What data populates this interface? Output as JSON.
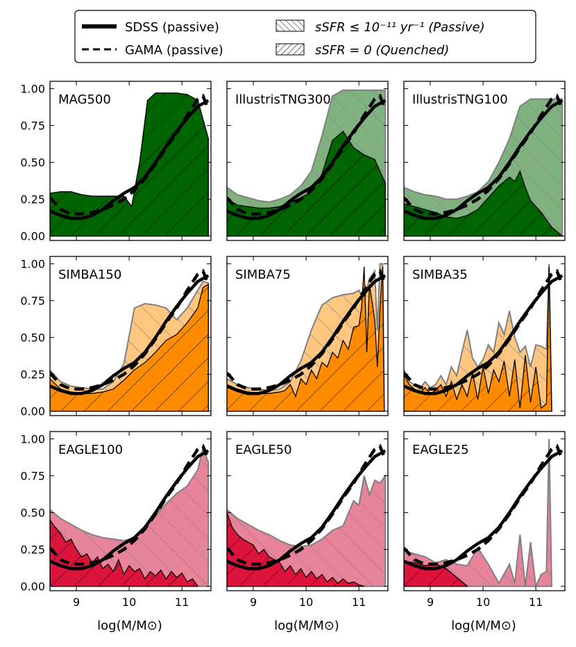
{
  "legend": {
    "entries": [
      {
        "label": "SDSS (passive)",
        "kind": "line-solid"
      },
      {
        "label": "GAMA (passive)",
        "kind": "line-dashed"
      },
      {
        "label": "sSFR ≤ 10⁻¹¹ yr⁻¹ (Passive)",
        "kind": "hatch-backslash"
      },
      {
        "label": "sSFR = 0 (Quenched)",
        "kind": "hatch-slash"
      }
    ]
  },
  "xlabel": "log(M/M⊙)",
  "colors": {
    "MAG500": {
      "passive": "#006400",
      "quenched": "#006400"
    },
    "IllustrisTNG": {
      "passive": "#7fb27f",
      "quenched": "#006400"
    },
    "SIMBA": {
      "passive": "#ffc680",
      "quenched": "#ff8c00"
    },
    "EAGLE": {
      "passive": "#e8849a",
      "quenched": "#dc143c"
    }
  },
  "chart_data": [
    {
      "type": "area",
      "title": "MAG500",
      "family": "MAG500",
      "xlim": [
        8.5,
        11.55
      ],
      "ylim": [
        -0.03,
        1.05
      ],
      "xticks": [
        "9",
        "10",
        "11"
      ],
      "yticks": [
        "0.00",
        "0.25",
        "0.50",
        "0.75",
        "1.00"
      ],
      "passive": {
        "x": [
          8.5,
          8.7,
          8.9,
          9.1,
          9.3,
          9.5,
          9.7,
          9.9,
          10.05,
          10.2,
          10.35,
          10.5,
          10.7,
          10.9,
          11.1,
          11.3,
          11.5
        ],
        "y": [
          0.29,
          0.3,
          0.3,
          0.28,
          0.27,
          0.27,
          0.27,
          0.27,
          0.2,
          0.5,
          0.92,
          0.97,
          0.97,
          0.97,
          0.96,
          0.92,
          0.66
        ]
      },
      "quenched": {
        "x": [
          8.5,
          8.7,
          8.9,
          9.1,
          9.3,
          9.5,
          9.7,
          9.9,
          10.05,
          10.2,
          10.35,
          10.5,
          10.7,
          10.9,
          11.1,
          11.3,
          11.5
        ],
        "y": [
          0.29,
          0.3,
          0.3,
          0.28,
          0.27,
          0.27,
          0.27,
          0.27,
          0.2,
          0.5,
          0.92,
          0.97,
          0.97,
          0.97,
          0.96,
          0.92,
          0.66
        ]
      }
    },
    {
      "type": "area",
      "title": "IllustrisTNG300",
      "family": "IllustrisTNG",
      "xlim": [
        8.5,
        11.55
      ],
      "ylim": [
        -0.03,
        1.05
      ],
      "xticks": [
        "9",
        "10",
        "11"
      ],
      "yticks": [
        "0.00",
        "0.25",
        "0.50",
        "0.75",
        "1.00"
      ],
      "passive": {
        "x": [
          8.5,
          8.7,
          8.9,
          9.1,
          9.3,
          9.5,
          9.7,
          9.9,
          10.1,
          10.3,
          10.5,
          10.7,
          10.9,
          11.1,
          11.3,
          11.5
        ],
        "y": [
          0.33,
          0.28,
          0.26,
          0.24,
          0.23,
          0.25,
          0.28,
          0.34,
          0.44,
          0.68,
          0.95,
          0.99,
          0.99,
          0.99,
          0.99,
          0.99
        ]
      },
      "quenched": {
        "x": [
          8.5,
          8.7,
          8.9,
          9.1,
          9.3,
          9.5,
          9.7,
          9.9,
          10.1,
          10.3,
          10.5,
          10.7,
          10.9,
          11.1,
          11.3,
          11.5
        ],
        "y": [
          0.25,
          0.21,
          0.2,
          0.19,
          0.19,
          0.2,
          0.23,
          0.26,
          0.3,
          0.42,
          0.65,
          0.71,
          0.6,
          0.55,
          0.52,
          0.36
        ]
      }
    },
    {
      "type": "area",
      "title": "IllustrisTNG100",
      "family": "IllustrisTNG",
      "xlim": [
        8.5,
        11.55
      ],
      "ylim": [
        -0.03,
        1.05
      ],
      "xticks": [
        "9",
        "10",
        "11"
      ],
      "yticks": [
        "0.00",
        "0.25",
        "0.50",
        "0.75",
        "1.00"
      ],
      "passive": {
        "x": [
          8.5,
          8.7,
          8.9,
          9.1,
          9.3,
          9.5,
          9.7,
          9.9,
          10.1,
          10.3,
          10.5,
          10.7,
          10.9,
          11.1,
          11.3,
          11.5
        ],
        "y": [
          0.33,
          0.3,
          0.28,
          0.27,
          0.25,
          0.25,
          0.27,
          0.3,
          0.37,
          0.5,
          0.66,
          0.88,
          0.93,
          0.93,
          0.93,
          0.93
        ]
      },
      "quenched": {
        "x": [
          8.5,
          8.7,
          8.9,
          9.1,
          9.3,
          9.5,
          9.7,
          9.9,
          10.1,
          10.3,
          10.5,
          10.6,
          10.7,
          10.8,
          10.9,
          11.1,
          11.3,
          11.5
        ],
        "y": [
          0.22,
          0.2,
          0.18,
          0.16,
          0.13,
          0.12,
          0.14,
          0.18,
          0.26,
          0.34,
          0.4,
          0.37,
          0.44,
          0.33,
          0.24,
          0.16,
          0.06,
          0.0
        ]
      }
    },
    {
      "type": "area",
      "title": "SIMBA150",
      "family": "SIMBA",
      "xlim": [
        8.5,
        11.55
      ],
      "ylim": [
        -0.03,
        1.05
      ],
      "xticks": [
        "9",
        "10",
        "11"
      ],
      "yticks": [
        "0.00",
        "0.25",
        "0.50",
        "0.75",
        "1.00"
      ],
      "passive": {
        "x": [
          8.5,
          8.7,
          8.9,
          9.1,
          9.3,
          9.5,
          9.7,
          9.9,
          10.1,
          10.3,
          10.5,
          10.7,
          10.9,
          11.1,
          11.3,
          11.4,
          11.5
        ],
        "y": [
          0.28,
          0.2,
          0.17,
          0.16,
          0.15,
          0.15,
          0.2,
          0.32,
          0.7,
          0.73,
          0.72,
          0.7,
          0.62,
          0.7,
          0.82,
          0.88,
          0.87
        ]
      },
      "quenched": {
        "x": [
          8.5,
          8.7,
          8.9,
          9.1,
          9.3,
          9.5,
          9.7,
          9.9,
          10.1,
          10.3,
          10.5,
          10.7,
          10.9,
          11.1,
          11.3,
          11.4,
          11.5
        ],
        "y": [
          0.22,
          0.15,
          0.13,
          0.12,
          0.12,
          0.13,
          0.15,
          0.21,
          0.28,
          0.33,
          0.4,
          0.48,
          0.52,
          0.6,
          0.7,
          0.84,
          0.86
        ]
      }
    },
    {
      "type": "area",
      "title": "SIMBA75",
      "family": "SIMBA",
      "xlim": [
        8.5,
        11.55
      ],
      "ylim": [
        -0.03,
        1.05
      ],
      "xticks": [
        "9",
        "10",
        "11"
      ],
      "yticks": [
        "0.00",
        "0.25",
        "0.50",
        "0.75",
        "1.00"
      ],
      "passive": {
        "x": [
          8.5,
          8.7,
          8.9,
          9.1,
          9.3,
          9.5,
          9.7,
          9.9,
          10.1,
          10.3,
          10.5,
          10.7,
          10.9,
          11.0,
          11.1,
          11.2,
          11.3,
          11.35,
          11.4,
          11.45,
          11.48
        ],
        "y": [
          0.22,
          0.18,
          0.16,
          0.15,
          0.14,
          0.15,
          0.2,
          0.34,
          0.55,
          0.72,
          0.77,
          0.79,
          0.8,
          0.82,
          0.75,
          0.9,
          0.95,
          0.55,
          1.0,
          1.0,
          0.0
        ]
      },
      "quenched": {
        "x": [
          8.5,
          8.7,
          8.9,
          9.1,
          9.3,
          9.5,
          9.6,
          9.7,
          9.8,
          9.9,
          10.0,
          10.1,
          10.2,
          10.3,
          10.4,
          10.5,
          10.6,
          10.7,
          10.8,
          10.9,
          11.0,
          11.05,
          11.1,
          11.15,
          11.2,
          11.3,
          11.35,
          11.4,
          11.45,
          11.48
        ],
        "y": [
          0.18,
          0.15,
          0.13,
          0.12,
          0.12,
          0.13,
          0.14,
          0.18,
          0.1,
          0.22,
          0.18,
          0.28,
          0.22,
          0.33,
          0.3,
          0.4,
          0.36,
          0.48,
          0.42,
          0.57,
          0.58,
          0.7,
          0.98,
          0.4,
          0.86,
          0.62,
          0.3,
          0.7,
          0.98,
          0.0
        ]
      }
    },
    {
      "type": "area",
      "title": "SIMBA35",
      "family": "SIMBA",
      "xlim": [
        8.5,
        11.55
      ],
      "ylim": [
        -0.03,
        1.05
      ],
      "xticks": [
        "9",
        "10",
        "11"
      ],
      "yticks": [
        "0.00",
        "0.25",
        "0.50",
        "0.75",
        "1.00"
      ],
      "passive": {
        "x": [
          8.5,
          8.6,
          8.7,
          8.8,
          8.9,
          9.0,
          9.1,
          9.2,
          9.3,
          9.4,
          9.5,
          9.6,
          9.7,
          9.8,
          9.9,
          10.0,
          10.1,
          10.2,
          10.3,
          10.4,
          10.5,
          10.6,
          10.7,
          10.8,
          10.9,
          11.0,
          11.1,
          11.2,
          11.25,
          11.3
        ],
        "y": [
          0.28,
          0.2,
          0.18,
          0.15,
          0.2,
          0.16,
          0.18,
          0.24,
          0.18,
          0.3,
          0.24,
          0.4,
          0.55,
          0.36,
          0.3,
          0.35,
          0.45,
          0.4,
          0.6,
          0.52,
          0.68,
          0.5,
          0.4,
          0.44,
          0.3,
          0.45,
          0.44,
          0.42,
          1.0,
          0.0
        ]
      },
      "quenched": {
        "x": [
          8.5,
          8.6,
          8.7,
          8.8,
          8.9,
          9.0,
          9.1,
          9.2,
          9.3,
          9.4,
          9.5,
          9.6,
          9.7,
          9.8,
          9.9,
          10.0,
          10.1,
          10.2,
          10.3,
          10.4,
          10.5,
          10.6,
          10.7,
          10.8,
          10.9,
          11.0,
          11.1,
          11.2,
          11.25,
          11.3
        ],
        "y": [
          0.25,
          0.18,
          0.15,
          0.12,
          0.16,
          0.12,
          0.14,
          0.18,
          0.1,
          0.2,
          0.08,
          0.18,
          0.1,
          0.26,
          0.08,
          0.3,
          0.12,
          0.28,
          0.2,
          0.34,
          0.1,
          0.35,
          0.02,
          0.38,
          0.06,
          0.3,
          0.02,
          0.05,
          0.98,
          0.0
        ]
      }
    },
    {
      "type": "area",
      "title": "EAGLE100",
      "family": "EAGLE",
      "xlim": [
        8.5,
        11.55
      ],
      "ylim": [
        -0.03,
        1.05
      ],
      "xticks": [
        "9",
        "10",
        "11"
      ],
      "yticks": [
        "0.00",
        "0.25",
        "0.50",
        "0.75",
        "1.00"
      ],
      "passive": {
        "x": [
          8.5,
          8.7,
          8.9,
          9.1,
          9.3,
          9.5,
          9.7,
          9.9,
          10.1,
          10.3,
          10.5,
          10.7,
          10.9,
          11.1,
          11.3,
          11.4,
          11.5
        ],
        "y": [
          0.52,
          0.46,
          0.42,
          0.38,
          0.35,
          0.33,
          0.32,
          0.31,
          0.33,
          0.4,
          0.48,
          0.56,
          0.63,
          0.68,
          0.79,
          0.94,
          0.84
        ]
      },
      "quenched": {
        "x": [
          8.5,
          8.6,
          8.7,
          8.8,
          8.9,
          9.0,
          9.1,
          9.2,
          9.3,
          9.4,
          9.5,
          9.6,
          9.7,
          9.8,
          9.9,
          10.0,
          10.1,
          10.2,
          10.3,
          10.4,
          10.5,
          10.6,
          10.7,
          10.8,
          10.9,
          11.0,
          11.1,
          11.2,
          11.3
        ],
        "y": [
          0.45,
          0.4,
          0.36,
          0.3,
          0.32,
          0.25,
          0.2,
          0.22,
          0.16,
          0.2,
          0.12,
          0.15,
          0.1,
          0.18,
          0.08,
          0.14,
          0.1,
          0.12,
          0.05,
          0.1,
          0.07,
          0.11,
          0.05,
          0.1,
          0.06,
          0.09,
          0.03,
          0.05,
          0.0
        ]
      }
    },
    {
      "type": "area",
      "title": "EAGLE50",
      "family": "EAGLE",
      "xlim": [
        8.5,
        11.55
      ],
      "ylim": [
        -0.03,
        1.05
      ],
      "xticks": [
        "9",
        "10",
        "11"
      ],
      "yticks": [
        "0.00",
        "0.25",
        "0.50",
        "0.75",
        "1.00"
      ],
      "passive": {
        "x": [
          8.5,
          8.7,
          8.9,
          9.1,
          9.3,
          9.5,
          9.7,
          9.9,
          10.1,
          10.3,
          10.5,
          10.7,
          10.9,
          11.0,
          11.1,
          11.2,
          11.3,
          11.4,
          11.5
        ],
        "y": [
          0.52,
          0.46,
          0.42,
          0.38,
          0.35,
          0.31,
          0.28,
          0.27,
          0.28,
          0.32,
          0.38,
          0.41,
          0.58,
          0.55,
          0.75,
          0.62,
          0.72,
          0.7,
          0.75
        ]
      },
      "quenched": {
        "x": [
          8.5,
          8.6,
          8.7,
          8.8,
          8.9,
          9.0,
          9.1,
          9.2,
          9.3,
          9.4,
          9.5,
          9.6,
          9.7,
          9.8,
          9.9,
          10.0,
          10.1,
          10.2,
          10.3,
          10.4,
          10.5,
          10.6,
          10.7,
          10.8,
          10.9,
          11.0,
          11.1
        ],
        "y": [
          0.5,
          0.4,
          0.35,
          0.32,
          0.3,
          0.28,
          0.22,
          0.25,
          0.2,
          0.18,
          0.16,
          0.1,
          0.14,
          0.08,
          0.12,
          0.06,
          0.1,
          0.05,
          0.08,
          0.03,
          0.06,
          0.02,
          0.05,
          0.02,
          0.03,
          0.01,
          0.0
        ]
      }
    },
    {
      "type": "area",
      "title": "EAGLE25",
      "family": "EAGLE",
      "xlim": [
        8.5,
        11.55
      ],
      "ylim": [
        -0.03,
        1.05
      ],
      "xticks": [
        "9",
        "10",
        "11"
      ],
      "yticks": [
        "0.00",
        "0.25",
        "0.50",
        "0.75",
        "1.00"
      ],
      "passive": {
        "x": [
          8.5,
          8.7,
          8.9,
          9.1,
          9.3,
          9.5,
          9.7,
          9.9,
          10.1,
          10.3,
          10.5,
          10.6,
          10.7,
          10.8,
          10.9,
          11.0,
          11.1,
          11.2,
          11.25,
          11.3
        ],
        "y": [
          0.24,
          0.22,
          0.2,
          0.16,
          0.18,
          0.15,
          0.14,
          0.26,
          0.15,
          0.02,
          0.15,
          0.02,
          0.35,
          0.0,
          0.3,
          0.0,
          0.08,
          0.1,
          1.0,
          0.0
        ]
      },
      "quenched": {
        "x": [
          8.5,
          8.7,
          8.9,
          9.1,
          9.3,
          9.5,
          9.7
        ],
        "y": [
          0.17,
          0.16,
          0.14,
          0.15,
          0.12,
          0.06,
          0.0
        ]
      }
    }
  ],
  "observations": {
    "sdss": {
      "x": [
        8.5,
        8.7,
        8.9,
        9.1,
        9.3,
        9.5,
        9.7,
        9.9,
        10.1,
        10.3,
        10.5,
        10.7,
        10.9,
        11.1,
        11.3,
        11.5
      ],
      "y": [
        0.17,
        0.14,
        0.12,
        0.12,
        0.14,
        0.18,
        0.24,
        0.29,
        0.33,
        0.4,
        0.5,
        0.61,
        0.71,
        0.8,
        0.88,
        0.92
      ]
    },
    "gama": {
      "x": [
        8.5,
        8.7,
        8.9,
        9.1,
        9.3,
        9.5,
        9.7,
        9.9,
        10.1,
        10.3,
        10.5,
        10.7,
        10.9,
        11.1,
        11.3,
        11.4,
        11.5
      ],
      "y": [
        0.26,
        0.18,
        0.15,
        0.15,
        0.16,
        0.18,
        0.21,
        0.25,
        0.31,
        0.39,
        0.49,
        0.6,
        0.7,
        0.82,
        0.93,
        0.95,
        0.86
      ]
    }
  }
}
